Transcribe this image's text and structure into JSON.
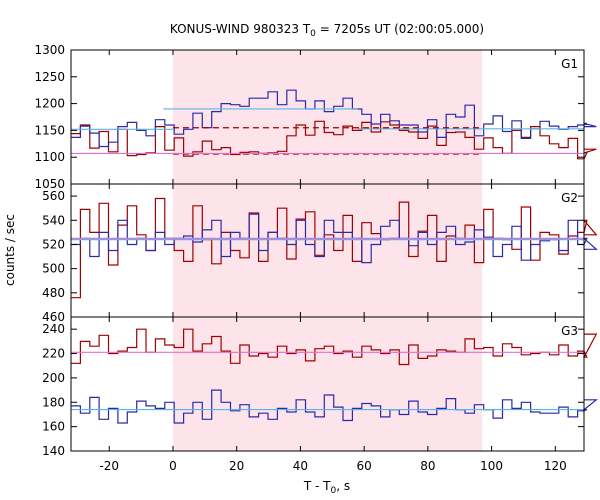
{
  "title_parts": {
    "pre": "KONUS-WIND 980323 T",
    "sub": "0",
    "post": " = 7205s UT (02:00:05.000)"
  },
  "xlabel_parts": {
    "pre": "T - T",
    "sub": "0",
    "post": ", s"
  },
  "ylabel": "counts / sec",
  "colors": {
    "dark_red": "#a00000",
    "blue": "#2a2aa8",
    "light_blue": "#5ab4e8",
    "pink": "#e070d0",
    "shade": "#fde4ea"
  },
  "chart_data": [
    {
      "type": "line",
      "panel": "G1",
      "label": "G1",
      "xlim": [
        -32,
        129
      ],
      "ylim": [
        1050,
        1300
      ],
      "x_ticks": [],
      "y_ticks": [
        1050,
        1100,
        1150,
        1200,
        1250,
        1300
      ],
      "shaded_interval": [
        0,
        97
      ],
      "bin_width": 2.944,
      "x_start": -32,
      "series": [
        {
          "color": "dark_red",
          "style": "step",
          "values": [
            1144,
            1160,
            1117,
            1148,
            1110,
            1152,
            1103,
            1105,
            1108,
            1157,
            1113,
            1136,
            1102,
            1110,
            1130,
            1114,
            1118,
            1105,
            1109,
            1110,
            1107,
            1108,
            1111,
            1140,
            1160,
            1141,
            1167,
            1146,
            1142,
            1158,
            1150,
            1165,
            1147,
            1166,
            1160,
            1150,
            1147,
            1135,
            1158,
            1122,
            1146,
            1147,
            1137,
            1115,
            1136,
            1118,
            1107,
            1150,
            1137,
            1157,
            1140,
            1125,
            1118,
            1135,
            1097,
            1108,
            1115
          ]
        },
        {
          "color": "blue",
          "style": "step",
          "values": [
            1137,
            1158,
            1145,
            1120,
            1128,
            1157,
            1165,
            1150,
            1140,
            1170,
            1160,
            1143,
            1152,
            1182,
            1155,
            1185,
            1200,
            1198,
            1195,
            1210,
            1210,
            1222,
            1198,
            1225,
            1205,
            1190,
            1205,
            1185,
            1195,
            1210,
            1190,
            1180,
            1162,
            1180,
            1168,
            1160,
            1160,
            1147,
            1170,
            1137,
            1180,
            1175,
            1197,
            1140,
            1162,
            1177,
            1148,
            1168,
            1135,
            1153,
            1167,
            1158,
            1152,
            1157,
            1160,
            1163,
            1157
          ]
        },
        {
          "color": "light_blue",
          "style": "segment",
          "x": [
            -32,
            0
          ],
          "values": [
            1152,
            1152
          ]
        },
        {
          "color": "light_blue",
          "style": "segment",
          "x": [
            -3,
            58
          ],
          "values": [
            1190,
            1190
          ]
        },
        {
          "color": "light_blue",
          "style": "segment",
          "x": [
            58,
            129
          ],
          "values": [
            1153,
            1153
          ]
        },
        {
          "color": "dark_red",
          "style": "dashed",
          "x": [
            0,
            97
          ],
          "values": [
            1155,
            1155
          ]
        },
        {
          "color": "dark_red",
          "style": "dashed",
          "x": [
            0,
            97
          ],
          "values": [
            1106,
            1106
          ]
        },
        {
          "color": "pink",
          "style": "segment",
          "x": [
            -32,
            129
          ],
          "values": [
            1107,
            1107
          ]
        }
      ]
    },
    {
      "type": "line",
      "panel": "G2",
      "label": "G2",
      "xlim": [
        -32,
        129
      ],
      "ylim": [
        460,
        570
      ],
      "x_ticks": [],
      "y_ticks": [
        460,
        480,
        500,
        520,
        540,
        560
      ],
      "shaded_interval": [
        0,
        97
      ],
      "bin_width": 2.944,
      "x_start": -32,
      "series": [
        {
          "color": "dark_red",
          "style": "step",
          "values": [
            476,
            549,
            530,
            554,
            503,
            536,
            552,
            528,
            515,
            558,
            525,
            515,
            506,
            552,
            524,
            504,
            530,
            515,
            509,
            546,
            506,
            530,
            550,
            508,
            541,
            547,
            511,
            528,
            515,
            544,
            506,
            538,
            529,
            524,
            525,
            555,
            510,
            531,
            544,
            506,
            527,
            525,
            536,
            505,
            549,
            525,
            524,
            516,
            551,
            507,
            530,
            528,
            512,
            527,
            530,
            540,
            528
          ]
        },
        {
          "color": "blue",
          "style": "step",
          "values": [
            520,
            525,
            510,
            530,
            515,
            540,
            520,
            525,
            515,
            530,
            520,
            525,
            527,
            522,
            532,
            540,
            510,
            530,
            525,
            545,
            515,
            530,
            525,
            520,
            540,
            520,
            510,
            540,
            530,
            530,
            525,
            505,
            520,
            535,
            540,
            525,
            519,
            530,
            520,
            530,
            535,
            520,
            522,
            532,
            526,
            510,
            520,
            535,
            507,
            520,
            523,
            524,
            515,
            540,
            520,
            525,
            516
          ]
        },
        {
          "color": "light_blue",
          "style": "segment",
          "x": [
            -32,
            129
          ],
          "values": [
            524,
            524
          ]
        },
        {
          "color": "pink",
          "style": "segment",
          "x": [
            -32,
            129
          ],
          "values": [
            525,
            525
          ]
        }
      ]
    },
    {
      "type": "line",
      "panel": "G3",
      "label": "G3",
      "xlim": [
        -32,
        129
      ],
      "ylim": [
        140,
        250
      ],
      "x_ticks": [
        -20,
        0,
        20,
        40,
        60,
        80,
        100,
        120
      ],
      "y_ticks": [
        140,
        160,
        180,
        200,
        220,
        240
      ],
      "shaded_interval": [
        0,
        97
      ],
      "bin_width": 2.944,
      "x_start": -32,
      "series": [
        {
          "color": "dark_red",
          "style": "step",
          "values": [
            212,
            230,
            226,
            235,
            220,
            222,
            225,
            240,
            221,
            232,
            227,
            225,
            240,
            222,
            228,
            234,
            222,
            212,
            227,
            218,
            220,
            217,
            226,
            220,
            223,
            214,
            224,
            226,
            220,
            222,
            217,
            226,
            223,
            220,
            223,
            211,
            227,
            216,
            218,
            223,
            222,
            221,
            232,
            224,
            225,
            218,
            228,
            225,
            219,
            220,
            221,
            219,
            227,
            218,
            222,
            217,
            236
          ]
        },
        {
          "color": "blue",
          "style": "step",
          "values": [
            177,
            171,
            184,
            166,
            175,
            163,
            172,
            181,
            177,
            175,
            180,
            163,
            171,
            180,
            166,
            190,
            180,
            173,
            178,
            168,
            171,
            166,
            175,
            172,
            182,
            172,
            168,
            186,
            176,
            165,
            175,
            179,
            177,
            168,
            174,
            170,
            181,
            172,
            170,
            175,
            183,
            174,
            171,
            178,
            174,
            167,
            182,
            175,
            180,
            172,
            171,
            171,
            176,
            168,
            173,
            174,
            182
          ]
        },
        {
          "color": "light_blue",
          "style": "segment",
          "x": [
            -32,
            129
          ],
          "values": [
            174,
            174
          ]
        },
        {
          "color": "pink",
          "style": "segment",
          "x": [
            -32,
            129
          ],
          "values": [
            221,
            221
          ]
        }
      ]
    }
  ]
}
